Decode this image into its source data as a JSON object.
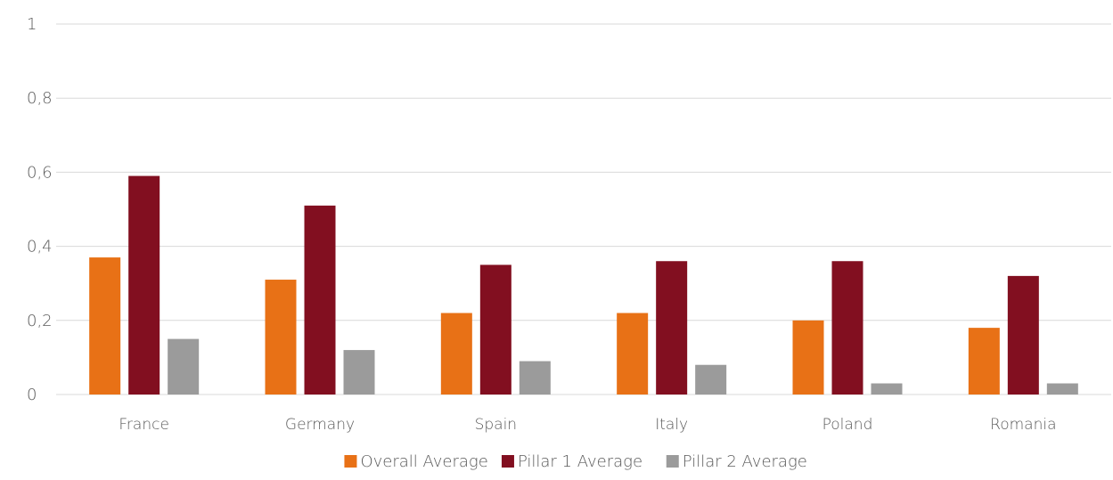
{
  "chart_data": {
    "type": "bar",
    "title": "",
    "xlabel": "",
    "ylabel": "",
    "categories": [
      "France",
      "Germany",
      "Spain",
      "Italy",
      "Poland",
      "Romania"
    ],
    "series": [
      {
        "name": "Overall Average",
        "color": "#e87116",
        "values": [
          0.37,
          0.31,
          0.22,
          0.22,
          0.2,
          0.18
        ]
      },
      {
        "name": "Pillar 1 Average",
        "color": "#820f20",
        "values": [
          0.59,
          0.51,
          0.35,
          0.36,
          0.36,
          0.32
        ]
      },
      {
        "name": "Pillar 2 Average",
        "color": "#9b9b9b",
        "values": [
          0.15,
          0.12,
          0.09,
          0.08,
          0.03,
          0.03
        ]
      }
    ],
    "ylim": [
      0,
      1
    ],
    "yticks": [
      {
        "value": 0,
        "label": "0"
      },
      {
        "value": 0.2,
        "label": "0,2"
      },
      {
        "value": 0.4,
        "label": "0,4"
      },
      {
        "value": 0.6,
        "label": "0,6"
      },
      {
        "value": 0.8,
        "label": "0,8"
      },
      {
        "value": 1,
        "label": "1"
      }
    ],
    "grid": true,
    "legend_position": "bottom"
  }
}
